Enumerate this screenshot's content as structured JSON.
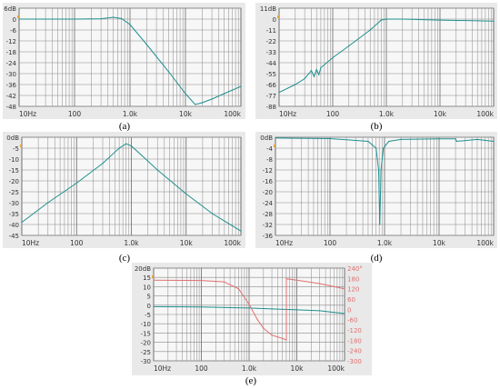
{
  "panels": [
    {
      "id": "a",
      "caption": "(a)"
    },
    {
      "id": "b",
      "caption": "(b)"
    },
    {
      "id": "c",
      "caption": "(c)"
    },
    {
      "id": "d",
      "caption": "(d)"
    },
    {
      "id": "e",
      "caption": "(e)"
    }
  ],
  "chart_data": [
    {
      "type": "line",
      "panel": "a",
      "xscale": "log",
      "xlim": [
        10,
        100000
      ],
      "xticks": [
        "10Hz",
        "100",
        "1.0k",
        "10k",
        "100k"
      ],
      "ylim": [
        -48,
        6
      ],
      "yticks": [
        "6dB",
        "0",
        "-6",
        "-12",
        "-18",
        "-24",
        "-30",
        "-36",
        "-42",
        "-48"
      ],
      "grid": true,
      "line_color": "#1f8f8f",
      "series": [
        {
          "x": [
            10,
            100,
            300,
            500,
            700,
            1000,
            2000,
            5000,
            10000,
            15000,
            20000,
            30000,
            50000,
            100000
          ],
          "y": [
            0,
            0,
            0.2,
            1,
            0.3,
            -3,
            -14,
            -29,
            -41,
            -47,
            -46,
            -44,
            -41,
            -37
          ]
        }
      ]
    },
    {
      "type": "line",
      "panel": "b",
      "xscale": "log",
      "xlim": [
        10,
        100000
      ],
      "xticks": [
        "10Hz",
        "100",
        "1.0k",
        "10k",
        "100k"
      ],
      "ylim": [
        -88,
        11
      ],
      "yticks": [
        "11dB",
        "0",
        "-11",
        "-22",
        "-33",
        "-44",
        "-55",
        "-66",
        "-77",
        "-88"
      ],
      "grid": true,
      "line_color": "#1f8f8f",
      "series": [
        {
          "x": [
            10,
            20,
            30,
            40,
            45,
            50,
            55,
            60,
            100,
            200,
            500,
            800,
            1000,
            2000,
            10000,
            100000
          ],
          "y": [
            -74,
            -66,
            -60,
            -52,
            -58,
            -51,
            -56,
            -49,
            -39,
            -27,
            -11,
            -1,
            0,
            0,
            -1,
            -2
          ]
        }
      ]
    },
    {
      "type": "line",
      "panel": "c",
      "xscale": "log",
      "xlim": [
        10,
        100000
      ],
      "xticks": [
        "10Hz",
        "100",
        "1.0k",
        "10k",
        "100k"
      ],
      "ylim": [
        -45,
        0
      ],
      "yticks": [
        "0dB",
        "-5",
        "-10",
        "-15",
        "-20",
        "-25",
        "-30",
        "-35",
        "-40",
        "-45"
      ],
      "grid": true,
      "line_color": "#1f8f8f",
      "series": [
        {
          "x": [
            10,
            30,
            100,
            300,
            600,
            800,
            1000,
            1500,
            3000,
            10000,
            30000,
            100000
          ],
          "y": [
            -39,
            -30,
            -21,
            -12,
            -5,
            -3,
            -4,
            -8,
            -15,
            -26,
            -35,
            -43
          ]
        }
      ]
    },
    {
      "type": "line",
      "panel": "d",
      "xscale": "log",
      "xlim": [
        10,
        100000
      ],
      "xticks": [
        "10Hz",
        "100",
        "1.0k",
        "10k",
        "100k"
      ],
      "ylim": [
        -36,
        0
      ],
      "yticks": [
        "0dB",
        "-4",
        "-8",
        "-12",
        "-16",
        "-20",
        "-24",
        "-28",
        "-32",
        "-36"
      ],
      "grid": true,
      "line_color": "#1f8f8f",
      "series": [
        {
          "x": [
            10,
            100,
            500,
            700,
            780,
            820,
            860,
            950,
            1200,
            2000,
            10000,
            20000,
            21000,
            50000,
            100000
          ],
          "y": [
            -0.3,
            -0.5,
            -1.5,
            -4,
            -12,
            -32,
            -12,
            -4,
            -1.5,
            -0.8,
            -0.6,
            -0.6,
            -1.5,
            -0.8,
            -1.5
          ]
        }
      ]
    },
    {
      "type": "line",
      "panel": "e",
      "xscale": "log",
      "xlim": [
        10,
        100000
      ],
      "xticks": [
        "10Hz",
        "100",
        "1.0k",
        "10k",
        "100k"
      ],
      "ylim": [
        -30,
        20
      ],
      "yticks": [
        "20dB",
        "15",
        "10",
        "5",
        "0",
        "-5",
        "-10",
        "-15",
        "-20",
        "-25",
        "-30"
      ],
      "y2lim": [
        -300,
        240
      ],
      "y2ticks": [
        "240°",
        "180",
        "120",
        "60",
        "0",
        "-60",
        "-120",
        "-180",
        "-240",
        "-300"
      ],
      "grid": true,
      "series": [
        {
          "axis": "y",
          "color": "#1f8f8f",
          "x": [
            10,
            100,
            1000,
            3000,
            10000,
            30000,
            100000
          ],
          "y": [
            -0.8,
            -1,
            -1.5,
            -2,
            -2.5,
            -3,
            -4.5
          ]
        },
        {
          "axis": "y2",
          "color": "#e07070",
          "x": [
            10,
            100,
            300,
            600,
            1000,
            1500,
            2000,
            3000,
            5000,
            6000,
            6050,
            10000,
            30000,
            100000
          ],
          "y": [
            170,
            168,
            160,
            120,
            30,
            -60,
            -110,
            -150,
            -170,
            -178,
            178,
            170,
            150,
            120
          ]
        }
      ]
    }
  ]
}
